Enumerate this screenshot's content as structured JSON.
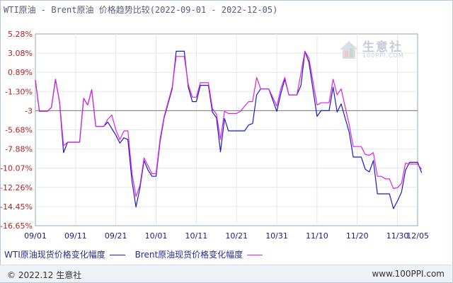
{
  "title": "WTI原油 - Brent原油 价格趋势比较(2022-09-01 - 2022-12-05)",
  "watermark": {
    "name": "生意社",
    "url": "100PPI.COM"
  },
  "footer": {
    "left": "© 2022.12 生意社",
    "right": "www.100PPI.com"
  },
  "legend": [
    {
      "label": "WTI原油现货价格变化幅度",
      "color": "#1a1ac8"
    },
    {
      "label": "Brent原油现货价格变化幅度",
      "color": "#dd22dd"
    }
  ],
  "chart_data": {
    "type": "line",
    "y_ticks": [
      5.28,
      3.08,
      0.89,
      -1.3,
      -3,
      -5.68,
      -7.88,
      -10.07,
      -12.26,
      -14.45,
      -16.65
    ],
    "y_tick_labels": [
      "5.28%",
      "3.08%",
      "0.89%",
      "-1.30%",
      "-3",
      "-5.68%",
      "-7.88%",
      "-10.07%",
      "-12.26%",
      "-14.45%",
      "-16.65%"
    ],
    "ylim": [
      -16.65,
      5.28
    ],
    "x_tick_labels": [
      "09/01",
      "09/11",
      "09/21",
      "10/01",
      "10/11",
      "10/21",
      "10/31",
      "11/10",
      "11/20",
      "11/30",
      "12/05"
    ],
    "x_tick_days": [
      0,
      10,
      20,
      30,
      40,
      50,
      60,
      70,
      80,
      90,
      95
    ],
    "x_range_days": [
      0,
      95
    ],
    "reference_line": -3,
    "grid": true,
    "series": [
      {
        "name": "WTI原油现货价格变化幅度",
        "color": "#1a1ac8",
        "points": [
          [
            0,
            0
          ],
          [
            1,
            -3.1
          ],
          [
            3,
            -3.1
          ],
          [
            4,
            -2.7
          ],
          [
            5,
            0.1
          ],
          [
            6,
            -2.2
          ],
          [
            7,
            -8.3
          ],
          [
            8,
            -7.1
          ],
          [
            11,
            -7.1
          ],
          [
            12,
            -1.9
          ],
          [
            13,
            -2.5
          ],
          [
            14,
            -1.1
          ],
          [
            15,
            -5.2
          ],
          [
            17,
            -5.2
          ],
          [
            18,
            -4.6
          ],
          [
            20,
            -6.3
          ],
          [
            21,
            -7.2
          ],
          [
            22,
            -6.6
          ],
          [
            23,
            -6.8
          ],
          [
            24,
            -11.5
          ],
          [
            25,
            -14.5
          ],
          [
            26,
            -12.3
          ],
          [
            27,
            -9.2
          ],
          [
            28,
            -10.3
          ],
          [
            29,
            -11.0
          ],
          [
            30,
            -11.0
          ],
          [
            31,
            -7.0
          ],
          [
            32,
            -4.0
          ],
          [
            34,
            -1.0
          ],
          [
            35,
            3.3
          ],
          [
            37,
            3.3
          ],
          [
            38,
            -0.8
          ],
          [
            39,
            -2.2
          ],
          [
            40,
            -2.2
          ],
          [
            41,
            -0.6
          ],
          [
            43,
            -0.6
          ],
          [
            44,
            -3.2
          ],
          [
            45,
            -4.0
          ],
          [
            46,
            -8.2
          ],
          [
            47,
            -4.1
          ],
          [
            48,
            -5.8
          ],
          [
            52,
            -5.8
          ],
          [
            53,
            -5.0
          ],
          [
            54,
            -4.8
          ],
          [
            55,
            -1.6
          ],
          [
            56,
            -1.0
          ],
          [
            58,
            -1.0
          ],
          [
            60,
            -3.1
          ],
          [
            61,
            -1.5
          ],
          [
            62,
            0.1
          ],
          [
            63,
            -1.6
          ],
          [
            65,
            -1.6
          ],
          [
            66,
            -0.6
          ],
          [
            67,
            3.3
          ],
          [
            68,
            2.0
          ],
          [
            70,
            -3.8
          ],
          [
            71,
            -3.0
          ],
          [
            73,
            -3.0
          ],
          [
            74,
            -0.8
          ],
          [
            75,
            -3.2
          ],
          [
            76,
            -2.4
          ],
          [
            78,
            -6.0
          ],
          [
            79,
            -8.8
          ],
          [
            81,
            -8.8
          ],
          [
            82,
            -10.2
          ],
          [
            83,
            -10.5
          ],
          [
            84,
            -9.2
          ],
          [
            85,
            -13.0
          ],
          [
            86,
            -13.0
          ],
          [
            87,
            -13.0
          ],
          [
            88,
            -13.0
          ],
          [
            89,
            -14.7
          ],
          [
            90,
            -13.8
          ],
          [
            91,
            -12.8
          ],
          [
            92,
            -10.3
          ],
          [
            93,
            -9.4
          ],
          [
            95,
            -9.4
          ],
          [
            96,
            -10.6
          ]
        ]
      },
      {
        "name": "Brent原油现货价格变化幅度",
        "color": "#dd22dd",
        "points": [
          [
            0,
            0
          ],
          [
            1,
            -3.1
          ],
          [
            3,
            -3.1
          ],
          [
            4,
            -2.7
          ],
          [
            5,
            0.1
          ],
          [
            6,
            -2.2
          ],
          [
            7,
            -7.5
          ],
          [
            8,
            -7.1
          ],
          [
            11,
            -7.1
          ],
          [
            12,
            -1.9
          ],
          [
            13,
            -2.5
          ],
          [
            14,
            -1.1
          ],
          [
            15,
            -5.2
          ],
          [
            17,
            -5.2
          ],
          [
            18,
            -4.2
          ],
          [
            19,
            -3.6
          ],
          [
            20,
            -5.7
          ],
          [
            21,
            -6.8
          ],
          [
            22,
            -5.8
          ],
          [
            23,
            -5.8
          ],
          [
            24,
            -10.6
          ],
          [
            25,
            -13.3
          ],
          [
            26,
            -12.0
          ],
          [
            27,
            -8.9
          ],
          [
            28,
            -9.8
          ],
          [
            29,
            -10.7
          ],
          [
            30,
            -10.7
          ],
          [
            31,
            -6.7
          ],
          [
            32,
            -3.8
          ],
          [
            34,
            -0.8
          ],
          [
            35,
            2.7
          ],
          [
            37,
            2.7
          ],
          [
            38,
            -0.5
          ],
          [
            39,
            -1.8
          ],
          [
            40,
            -1.8
          ],
          [
            41,
            -0.3
          ],
          [
            43,
            -0.3
          ],
          [
            44,
            -2.8
          ],
          [
            45,
            -3.5
          ],
          [
            46,
            -6.8
          ],
          [
            47,
            -3.1
          ],
          [
            48,
            -3.4
          ],
          [
            50,
            -3.4
          ],
          [
            51,
            -3.1
          ],
          [
            52,
            -2.6
          ],
          [
            53,
            -2.2
          ],
          [
            54,
            -2.2
          ],
          [
            55,
            0.3
          ],
          [
            56,
            -1.0
          ],
          [
            58,
            -1.0
          ],
          [
            60,
            -2.6
          ],
          [
            61,
            -1.0
          ],
          [
            62,
            0.3
          ],
          [
            63,
            -1.6
          ],
          [
            65,
            -1.6
          ],
          [
            66,
            0.8
          ],
          [
            67,
            3.3
          ],
          [
            68,
            2.5
          ],
          [
            70,
            -2.5
          ],
          [
            71,
            -2.3
          ],
          [
            73,
            -2.3
          ],
          [
            74,
            0.1
          ],
          [
            75,
            -1.6
          ],
          [
            76,
            -1.0
          ],
          [
            78,
            -5.0
          ],
          [
            79,
            -7.6
          ],
          [
            81,
            -7.6
          ],
          [
            82,
            -8.5
          ],
          [
            83,
            -8.6
          ],
          [
            84,
            -8.3
          ],
          [
            85,
            -11.0
          ],
          [
            86,
            -11.0
          ],
          [
            87,
            -11.3
          ],
          [
            88,
            -11.3
          ],
          [
            89,
            -12.4
          ],
          [
            90,
            -12.3
          ],
          [
            91,
            -11.8
          ],
          [
            92,
            -9.5
          ],
          [
            93,
            -9.6
          ],
          [
            95,
            -9.6
          ],
          [
            96,
            -10.2
          ]
        ]
      }
    ]
  }
}
